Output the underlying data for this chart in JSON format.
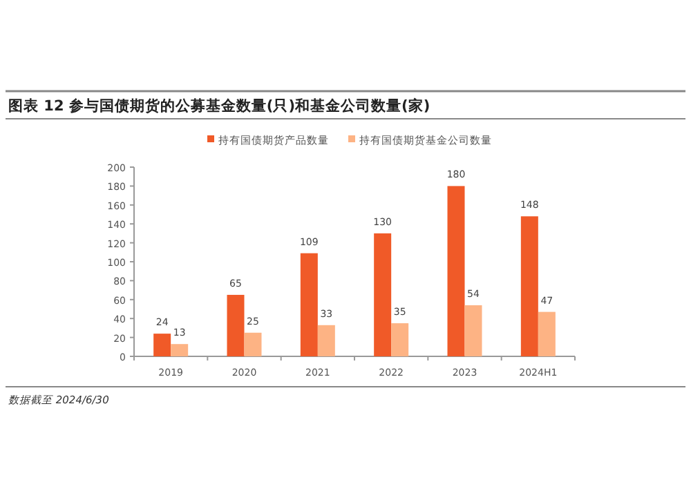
{
  "chart_data": {
    "type": "bar",
    "title": "图表 12   参与国债期货的公募基金数量(只)和基金公司数量(家)",
    "categories": [
      "2019",
      "2020",
      "2021",
      "2022",
      "2023",
      "2024H1"
    ],
    "series": [
      {
        "name": "持有国债期货产品数量",
        "color": "#f05a28",
        "values": [
          24,
          65,
          109,
          130,
          180,
          148
        ]
      },
      {
        "name": "持有国债期货基金公司数量",
        "color": "#fdb384",
        "values": [
          13,
          25,
          33,
          35,
          54,
          47
        ]
      }
    ],
    "ylim": [
      0,
      200
    ],
    "yticks": [
      0,
      20,
      40,
      60,
      80,
      100,
      120,
      140,
      160,
      180,
      200
    ],
    "data_labels": true,
    "legend": "top",
    "grid": false,
    "annotations": [
      "数据截至 2024/6/30"
    ]
  }
}
